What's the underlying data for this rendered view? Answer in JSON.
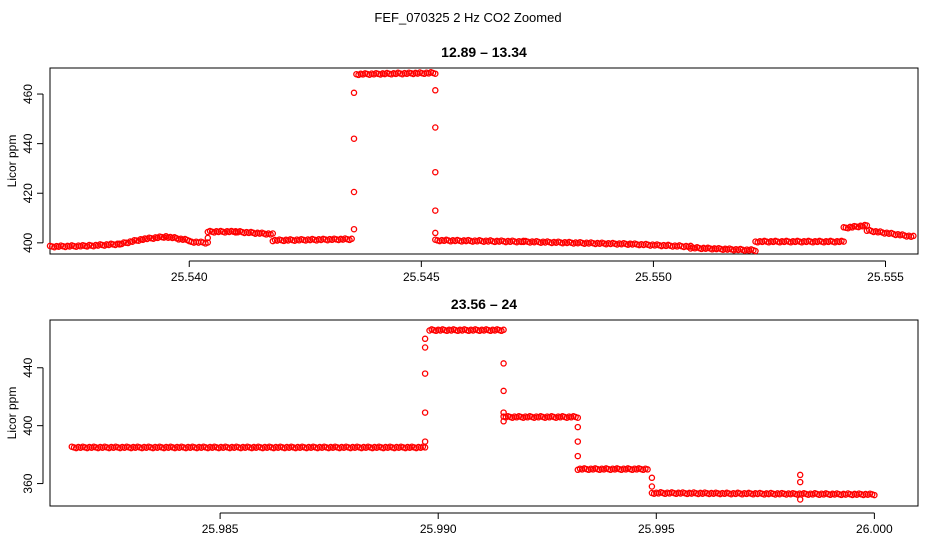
{
  "suptitle": "FEF_070325 2 Hz CO2 Zoomed",
  "colors": {
    "points": "#ff0000",
    "axes": "#000000",
    "background": "#ffffff"
  },
  "chart_data": [
    {
      "type": "scatter",
      "title": "12.89 – 13.34",
      "xlabel": "",
      "ylabel": "Licor ppm",
      "xlim": [
        25.537,
        25.5557
      ],
      "ylim": [
        395.5,
        470.5
      ],
      "x_ticks": [
        "25.540",
        "25.545",
        "25.550",
        "25.555"
      ],
      "x_tick_values": [
        25.54,
        25.545,
        25.55,
        25.555
      ],
      "y_ticks": [
        "400",
        "420",
        "440",
        "460"
      ],
      "y_tick_values": [
        400,
        420,
        440,
        460
      ],
      "marker": "open-circle",
      "grid": false,
      "segments": [
        {
          "x": [
            25.537,
            25.5378
          ],
          "y": [
            398.5,
            398.8
          ]
        },
        {
          "x": [
            25.5378,
            25.5385
          ],
          "y": [
            398.8,
            399.5
          ]
        },
        {
          "x": [
            25.5385,
            25.539
          ],
          "y": [
            399.5,
            401.5
          ]
        },
        {
          "x": [
            25.539,
            25.5395
          ],
          "y": [
            401.5,
            402.5
          ]
        },
        {
          "x": [
            25.5395,
            25.54
          ],
          "y": [
            402.5,
            401.0
          ]
        },
        {
          "x": [
            25.54,
            25.5404
          ],
          "y": [
            400.5,
            400.0
          ]
        },
        {
          "x": [
            25.5404,
            25.541
          ],
          "y": [
            404.5,
            404.5
          ]
        },
        {
          "x": [
            25.541,
            25.5418
          ],
          "y": [
            404.5,
            403.5
          ]
        },
        {
          "x": [
            25.5418,
            25.5435
          ],
          "y": [
            401.0,
            401.5
          ]
        },
        {
          "x": [
            25.5436,
            25.5453
          ],
          "y": [
            468.0,
            468.5
          ]
        },
        {
          "x": [
            25.5453,
            25.5472
          ],
          "y": [
            401.0,
            400.5
          ]
        },
        {
          "x": [
            25.5472,
            25.5495
          ],
          "y": [
            400.5,
            399.5
          ]
        },
        {
          "x": [
            25.5495,
            25.5508
          ],
          "y": [
            399.5,
            398.5
          ]
        },
        {
          "x": [
            25.5508,
            25.5522
          ],
          "y": [
            398.0,
            397.0
          ]
        },
        {
          "x": [
            25.5522,
            25.5541
          ],
          "y": [
            400.5,
            400.5
          ]
        },
        {
          "x": [
            25.5541,
            25.5546
          ],
          "y": [
            406.0,
            407.0
          ]
        },
        {
          "x": [
            25.5546,
            25.5556
          ],
          "y": [
            405.0,
            402.5
          ]
        }
      ],
      "transition_points": [
        {
          "x": 25.54355,
          "y": 405.5
        },
        {
          "x": 25.54355,
          "y": 420.5
        },
        {
          "x": 25.54355,
          "y": 442.0
        },
        {
          "x": 25.54355,
          "y": 460.5
        },
        {
          "x": 25.5453,
          "y": 461.5
        },
        {
          "x": 25.5453,
          "y": 446.5
        },
        {
          "x": 25.5453,
          "y": 428.5
        },
        {
          "x": 25.5453,
          "y": 413.0
        },
        {
          "x": 25.5453,
          "y": 404.0
        },
        {
          "x": 25.5404,
          "y": 402.0
        }
      ]
    },
    {
      "type": "scatter",
      "title": "23.56 – 24",
      "xlabel": "",
      "ylabel": "Licor ppm",
      "xlim": [
        25.9811,
        26.001
      ],
      "ylim": [
        344.5,
        473.0
      ],
      "x_ticks": [
        "25.985",
        "25.990",
        "25.995",
        "26.000"
      ],
      "x_tick_values": [
        25.985,
        25.99,
        25.995,
        26.0
      ],
      "y_ticks": [
        "360",
        "400",
        "440"
      ],
      "y_tick_values": [
        360,
        400,
        440
      ],
      "marker": "open-circle",
      "grid": false,
      "segments": [
        {
          "x": [
            25.9816,
            25.9897
          ],
          "y": [
            385.0,
            385.0
          ]
        },
        {
          "x": [
            25.9898,
            25.9915
          ],
          "y": [
            466.0,
            466.0
          ]
        },
        {
          "x": [
            25.9915,
            25.9932
          ],
          "y": [
            406.0,
            406.0
          ]
        },
        {
          "x": [
            25.9932,
            25.9948
          ],
          "y": [
            370.0,
            370.0
          ]
        },
        {
          "x": [
            25.9949,
            26.0
          ],
          "y": [
            353.5,
            352.5
          ]
        }
      ],
      "transition_points": [
        {
          "x": 25.9897,
          "y": 389.0
        },
        {
          "x": 25.9897,
          "y": 409.0
        },
        {
          "x": 25.9897,
          "y": 436.0
        },
        {
          "x": 25.9897,
          "y": 454.0
        },
        {
          "x": 25.9897,
          "y": 460.0
        },
        {
          "x": 25.9915,
          "y": 443.0
        },
        {
          "x": 25.9915,
          "y": 424.0
        },
        {
          "x": 25.9915,
          "y": 409.0
        },
        {
          "x": 25.9915,
          "y": 403.0
        },
        {
          "x": 25.9932,
          "y": 399.0
        },
        {
          "x": 25.9932,
          "y": 389.0
        },
        {
          "x": 25.9932,
          "y": 379.0
        },
        {
          "x": 25.9949,
          "y": 364.0
        },
        {
          "x": 25.9949,
          "y": 358.0
        },
        {
          "x": 25.9983,
          "y": 366.0
        },
        {
          "x": 25.9983,
          "y": 361.0
        },
        {
          "x": 25.9983,
          "y": 349.0
        }
      ]
    }
  ]
}
